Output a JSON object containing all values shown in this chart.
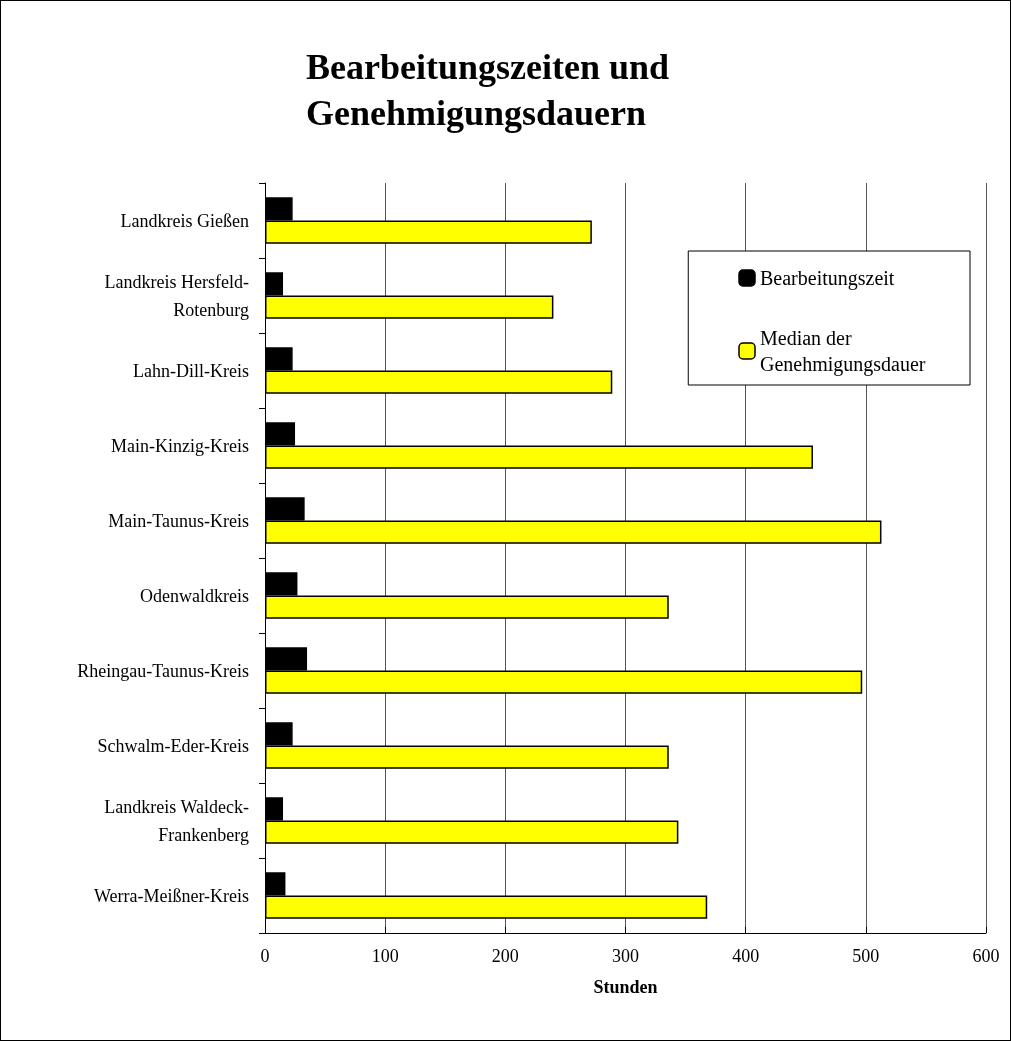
{
  "chart_data": {
    "type": "bar",
    "orientation": "horizontal",
    "title": "Bearbeitungszeiten und Genehmigungsdauern",
    "xlabel": "Stunden",
    "categories": [
      "Landkreis Gießen",
      "Landkreis Hersfeld-Rotenburg",
      "Lahn-Dill-Kreis",
      "Main-Kinzig-Kreis",
      "Main-Taunus-Kreis",
      "Odenwaldkreis",
      "Rheingau-Taunus-Kreis",
      "Schwalm-Eder-Kreis",
      "Landkreis Waldeck-Frankenberg",
      "Werra-Meißner-Kreis"
    ],
    "series": [
      {
        "name": "Bearbeitungszeit",
        "color": "#000000",
        "values": [
          23,
          15,
          23,
          25,
          33,
          27,
          35,
          23,
          15,
          17
        ]
      },
      {
        "name": "Median der Genehmigungsdauer",
        "color": "#ffff00",
        "values": [
          272,
          240,
          289,
          456,
          513,
          336,
          497,
          336,
          344,
          368
        ]
      }
    ],
    "xlim": [
      0,
      600
    ],
    "xticks": [
      0,
      100,
      200,
      300,
      400,
      500,
      600
    ],
    "grid": "x",
    "legend": "top right"
  }
}
